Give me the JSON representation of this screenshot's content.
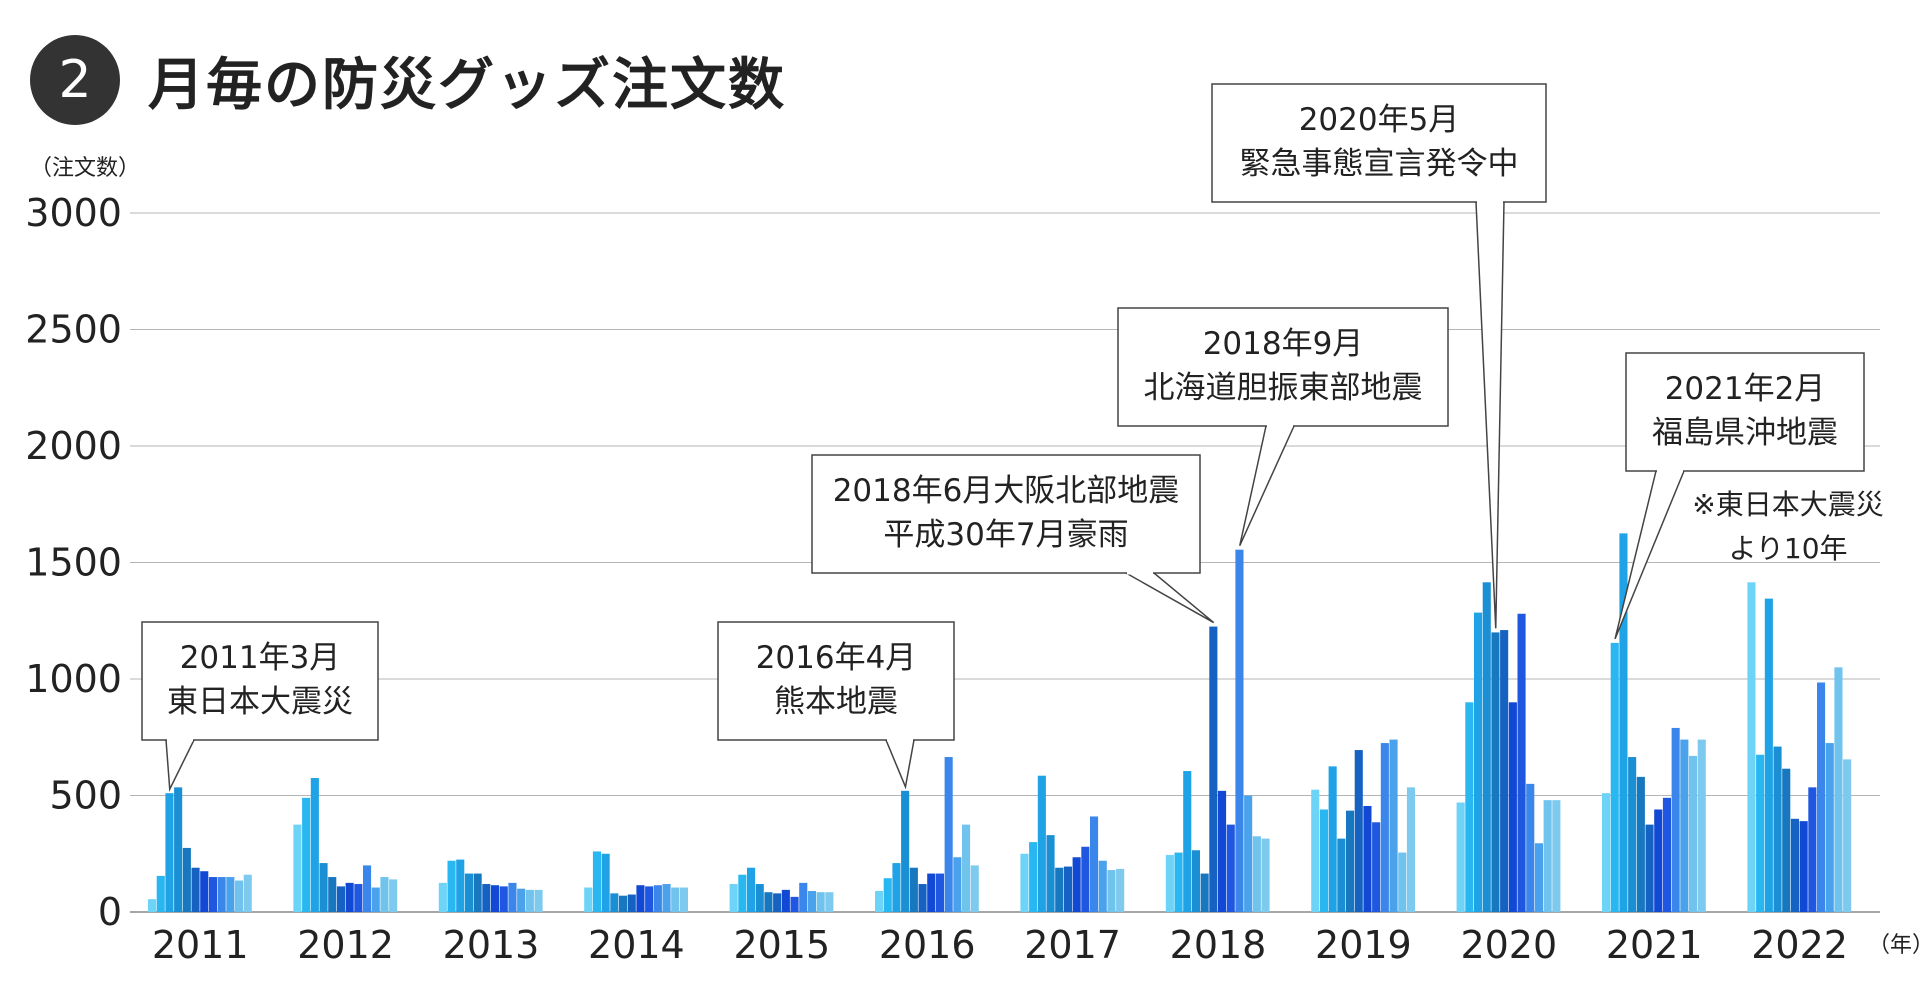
{
  "badge_number": "2",
  "chart_data": {
    "type": "bar",
    "title": "月毎の防災グッズ注文数",
    "ylabel": "（注文数）",
    "xlabel": "（年）",
    "ylim": [
      0,
      3000
    ],
    "y_ticks": [
      0,
      500,
      1000,
      1500,
      2000,
      2500,
      3000
    ],
    "grid": true,
    "years": [
      "2011",
      "2012",
      "2013",
      "2014",
      "2015",
      "2016",
      "2017",
      "2018",
      "2019",
      "2020",
      "2021",
      "2022"
    ],
    "months_per_year": 12,
    "values": [
      [
        55,
        155,
        510,
        535,
        275,
        190,
        175,
        150,
        150,
        150,
        135,
        160
      ],
      [
        375,
        490,
        575,
        210,
        150,
        110,
        125,
        120,
        200,
        105,
        150,
        140
      ],
      [
        125,
        220,
        225,
        165,
        165,
        120,
        115,
        110,
        125,
        100,
        95,
        95
      ],
      [
        105,
        260,
        250,
        80,
        70,
        75,
        115,
        110,
        115,
        120,
        105,
        105
      ],
      [
        120,
        160,
        190,
        120,
        85,
        80,
        95,
        65,
        125,
        90,
        85,
        85
      ],
      [
        90,
        145,
        210,
        520,
        190,
        120,
        165,
        165,
        665,
        235,
        375,
        200
      ],
      [
        250,
        300,
        585,
        330,
        190,
        195,
        235,
        280,
        410,
        220,
        180,
        185
      ],
      [
        245,
        255,
        605,
        265,
        165,
        1225,
        520,
        375,
        1555,
        500,
        325,
        315
      ],
      [
        525,
        440,
        625,
        315,
        435,
        695,
        455,
        385,
        725,
        740,
        255,
        535
      ],
      [
        470,
        900,
        1285,
        1415,
        1200,
        1210,
        900,
        1280,
        550,
        295,
        480,
        480
      ],
      [
        510,
        1155,
        1625,
        665,
        580,
        375,
        440,
        490,
        790,
        740,
        670,
        740
      ],
      [
        1415,
        675,
        1345,
        710,
        615,
        400,
        390,
        535,
        985,
        725,
        1050,
        655
      ]
    ],
    "colors": [
      "#6dd3f7",
      "#29b7f1",
      "#1fa3e6",
      "#1a8fd4",
      "#1778bf",
      "#1562c2",
      "#1148d4",
      "#1f57e0",
      "#3a86ea",
      "#4aa2ec",
      "#6fc3ec",
      "#7dcaee"
    ],
    "annotations": [
      {
        "lines": [
          "2011年3月",
          "東日本大震災"
        ],
        "year_index": 0,
        "month_index": 2
      },
      {
        "lines": [
          "2016年4月",
          "熊本地震"
        ],
        "year_index": 5,
        "month_index": 3
      },
      {
        "lines": [
          "2018年6月大阪北部地震",
          "平成30年7月豪雨"
        ],
        "year_index": 7,
        "month_index": 5
      },
      {
        "lines": [
          "2018年9月",
          "北海道胆振東部地震"
        ],
        "year_index": 7,
        "month_index": 8
      },
      {
        "lines": [
          "2020年5月",
          "緊急事態宣言発令中"
        ],
        "year_index": 9,
        "month_index": 4
      },
      {
        "lines": [
          "2021年2月",
          "福島県沖地震"
        ],
        "year_index": 10,
        "month_index": 1
      }
    ],
    "note_lines": [
      "※東日本大震災",
      "より10年"
    ]
  }
}
